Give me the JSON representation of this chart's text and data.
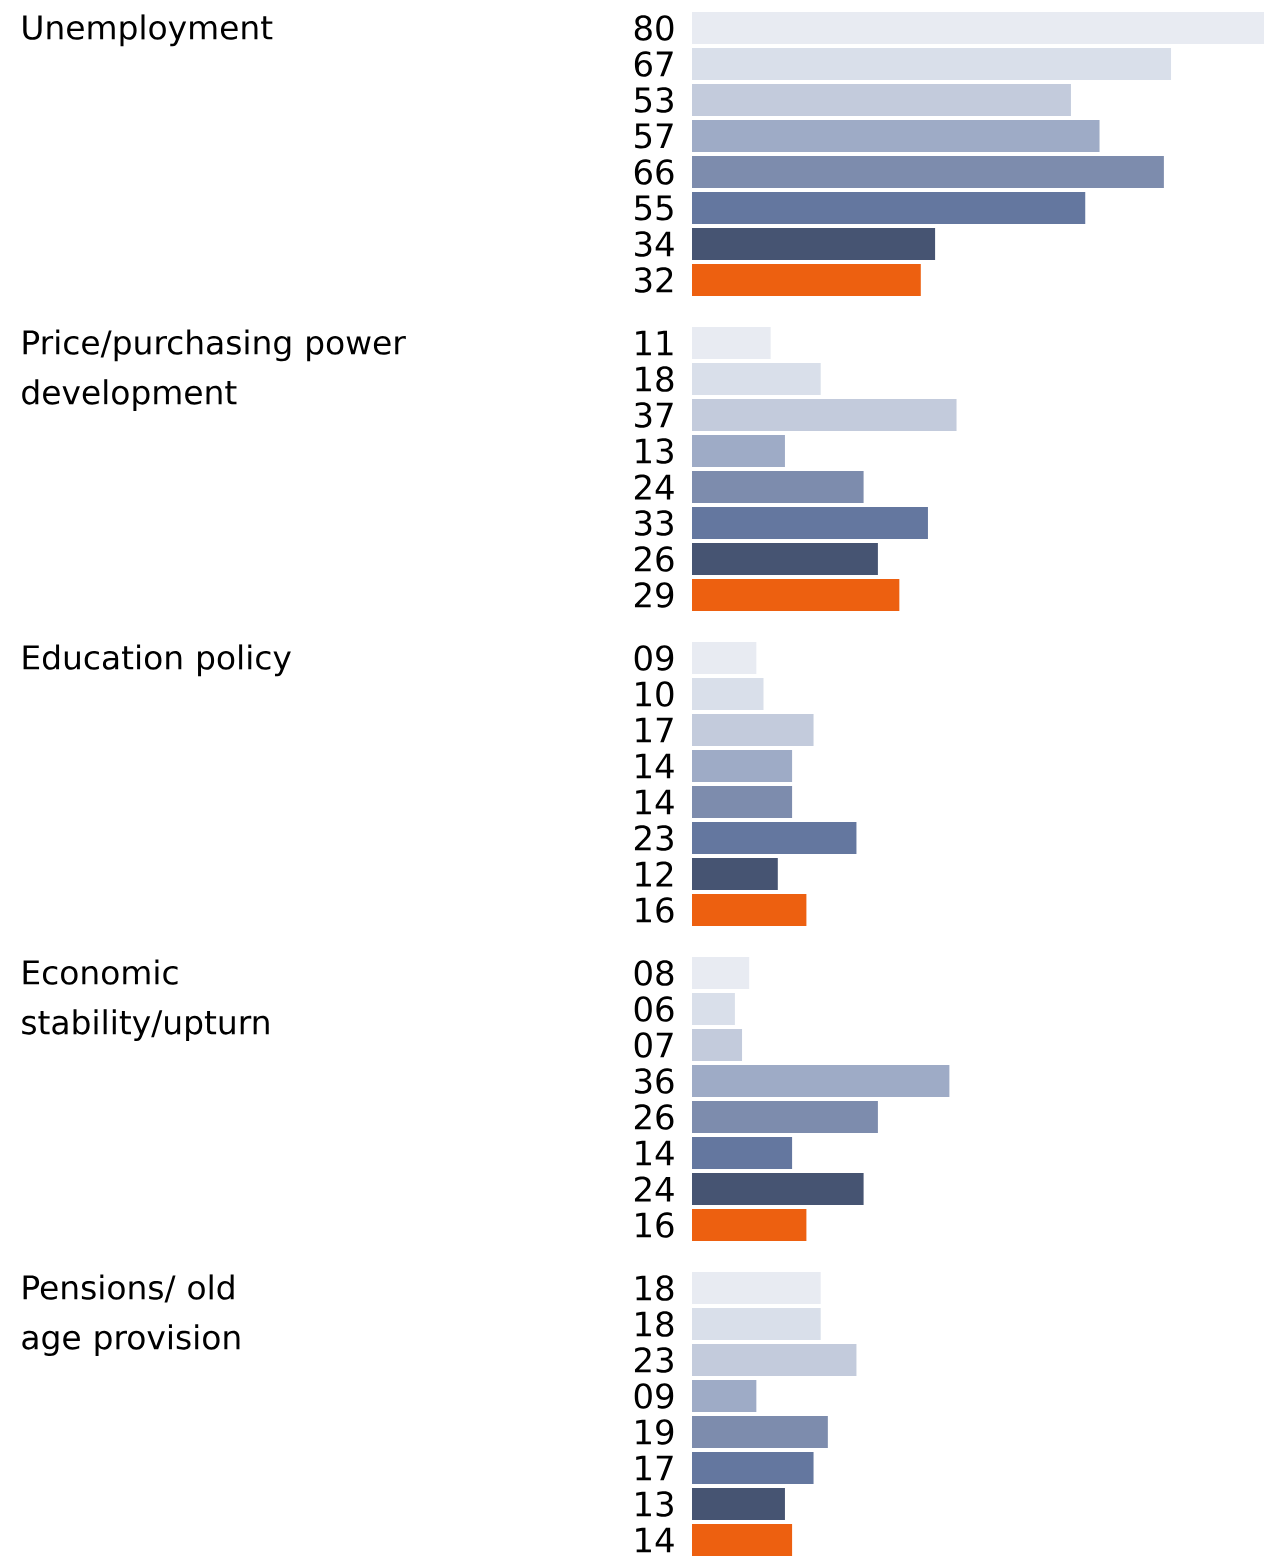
{
  "chart_data": {
    "type": "bar",
    "orientation": "horizontal",
    "categories": [
      "Unemployment",
      "Price/purchasing power development",
      "Education policy",
      "Economic stability/upturn",
      "Pensions/ old age provision"
    ],
    "series": [
      {
        "color": "#e8ebf2",
        "values": [
          80,
          11,
          9,
          8,
          18
        ],
        "value_labels": [
          "80",
          "11",
          "09",
          "08",
          "18"
        ]
      },
      {
        "color": "#d9dfea",
        "values": [
          67,
          18,
          10,
          6,
          18
        ],
        "value_labels": [
          "67",
          "18",
          "10",
          "06",
          "18"
        ]
      },
      {
        "color": "#c3cbdc",
        "values": [
          53,
          37,
          17,
          7,
          23
        ],
        "value_labels": [
          "53",
          "37",
          "17",
          "07",
          "23"
        ]
      },
      {
        "color": "#9eabc6",
        "values": [
          57,
          13,
          14,
          36,
          9
        ],
        "value_labels": [
          "57",
          "13",
          "14",
          "36",
          "09"
        ]
      },
      {
        "color": "#7d8cad",
        "values": [
          66,
          24,
          14,
          26,
          19
        ],
        "value_labels": [
          "66",
          "24",
          "14",
          "26",
          "19"
        ]
      },
      {
        "color": "#64779f",
        "values": [
          55,
          33,
          23,
          14,
          17
        ],
        "value_labels": [
          "55",
          "33",
          "23",
          "14",
          "17"
        ]
      },
      {
        "color": "#465472",
        "values": [
          34,
          26,
          12,
          24,
          13
        ],
        "value_labels": [
          "34",
          "26",
          "12",
          "24",
          "13"
        ]
      },
      {
        "color": "#ed6010",
        "values": [
          32,
          29,
          16,
          16,
          14
        ],
        "value_labels": [
          "32",
          "29",
          "16",
          "16",
          "14"
        ]
      }
    ]
  }
}
